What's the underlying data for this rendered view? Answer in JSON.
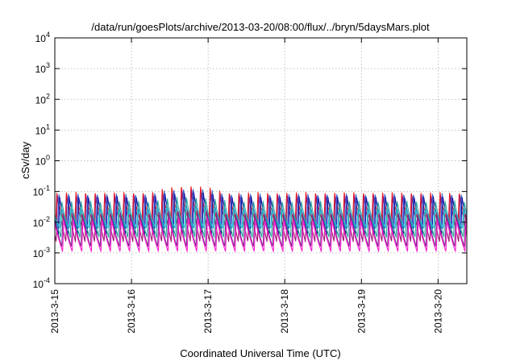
{
  "chart_data": {
    "type": "line",
    "title": "/data/run/goesPlots/archive/2013-03-20/08:00/flux/../bryn/5daysMars.plot",
    "xlabel": "Coordinated Universal Time (UTC)",
    "ylabel": "cSv/day",
    "y_scale": "log",
    "ylim": [
      0.0001,
      10000
    ],
    "y_ticks": [
      {
        "base": "10",
        "exp": "-4",
        "value": 0.0001
      },
      {
        "base": "10",
        "exp": "-3",
        "value": 0.001
      },
      {
        "base": "10",
        "exp": "-2",
        "value": 0.01
      },
      {
        "base": "10",
        "exp": "-1",
        "value": 0.1
      },
      {
        "base": "10",
        "exp": "0",
        "value": 1
      },
      {
        "base": "10",
        "exp": "1",
        "value": 10
      },
      {
        "base": "10",
        "exp": "2",
        "value": 100
      },
      {
        "base": "10",
        "exp": "3",
        "value": 1000
      },
      {
        "base": "10",
        "exp": "4",
        "value": 10000
      }
    ],
    "xlim": [
      "2013-03-15T00:00",
      "2013-03-20T09:00"
    ],
    "x_ticks": [
      "2013-3-15",
      "2013-3-16",
      "2013-3-17",
      "2013-3-18",
      "2013-3-19",
      "2013-3-20"
    ],
    "x_tick_dates": [
      "2013-03-15",
      "2013-03-16",
      "2013-03-17",
      "2013-03-18",
      "2013-03-19",
      "2013-03-20"
    ],
    "grid": true,
    "orbit_period_hours": 3,
    "series": [
      {
        "color": "#e8141d",
        "offset_hours": 0.25,
        "peak": 0.095,
        "trough": 0.0075,
        "peak_enhanced": 0.16
      },
      {
        "color": "#9a1a6e",
        "offset_hours": 0.45,
        "peak": 0.075,
        "trough": 0.0023,
        "peak_enhanced": 0.11
      },
      {
        "color": "#2f5fd6",
        "offset_hours": 0.9,
        "peak": 0.085,
        "trough": 0.006,
        "peak_enhanced": 0.13
      },
      {
        "color": "#1a1aa0",
        "offset_hours": 1.15,
        "peak": 0.07,
        "trough": 0.004,
        "peak_enhanced": 0.1
      },
      {
        "color": "#22c0e8",
        "offset_hours": 1.6,
        "peak": 0.03,
        "trough": 0.0065,
        "peak_enhanced": 0.04
      },
      {
        "color": "#2aa6a0",
        "offset_hours": 1.85,
        "peak": 0.05,
        "trough": 0.0032,
        "peak_enhanced": 0.07
      },
      {
        "color": "#7a2a8a",
        "offset_hours": 2.2,
        "peak": 0.02,
        "trough": 0.0016,
        "peak_enhanced": 0.026
      },
      {
        "color": "#ff1ad0",
        "offset_hours": 2.45,
        "peak": 0.012,
        "trough": 0.0011,
        "peak_enhanced": 0.015
      }
    ],
    "enhancement_window": [
      "2013-03-16T06:00",
      "2013-03-17T06:00"
    ]
  }
}
